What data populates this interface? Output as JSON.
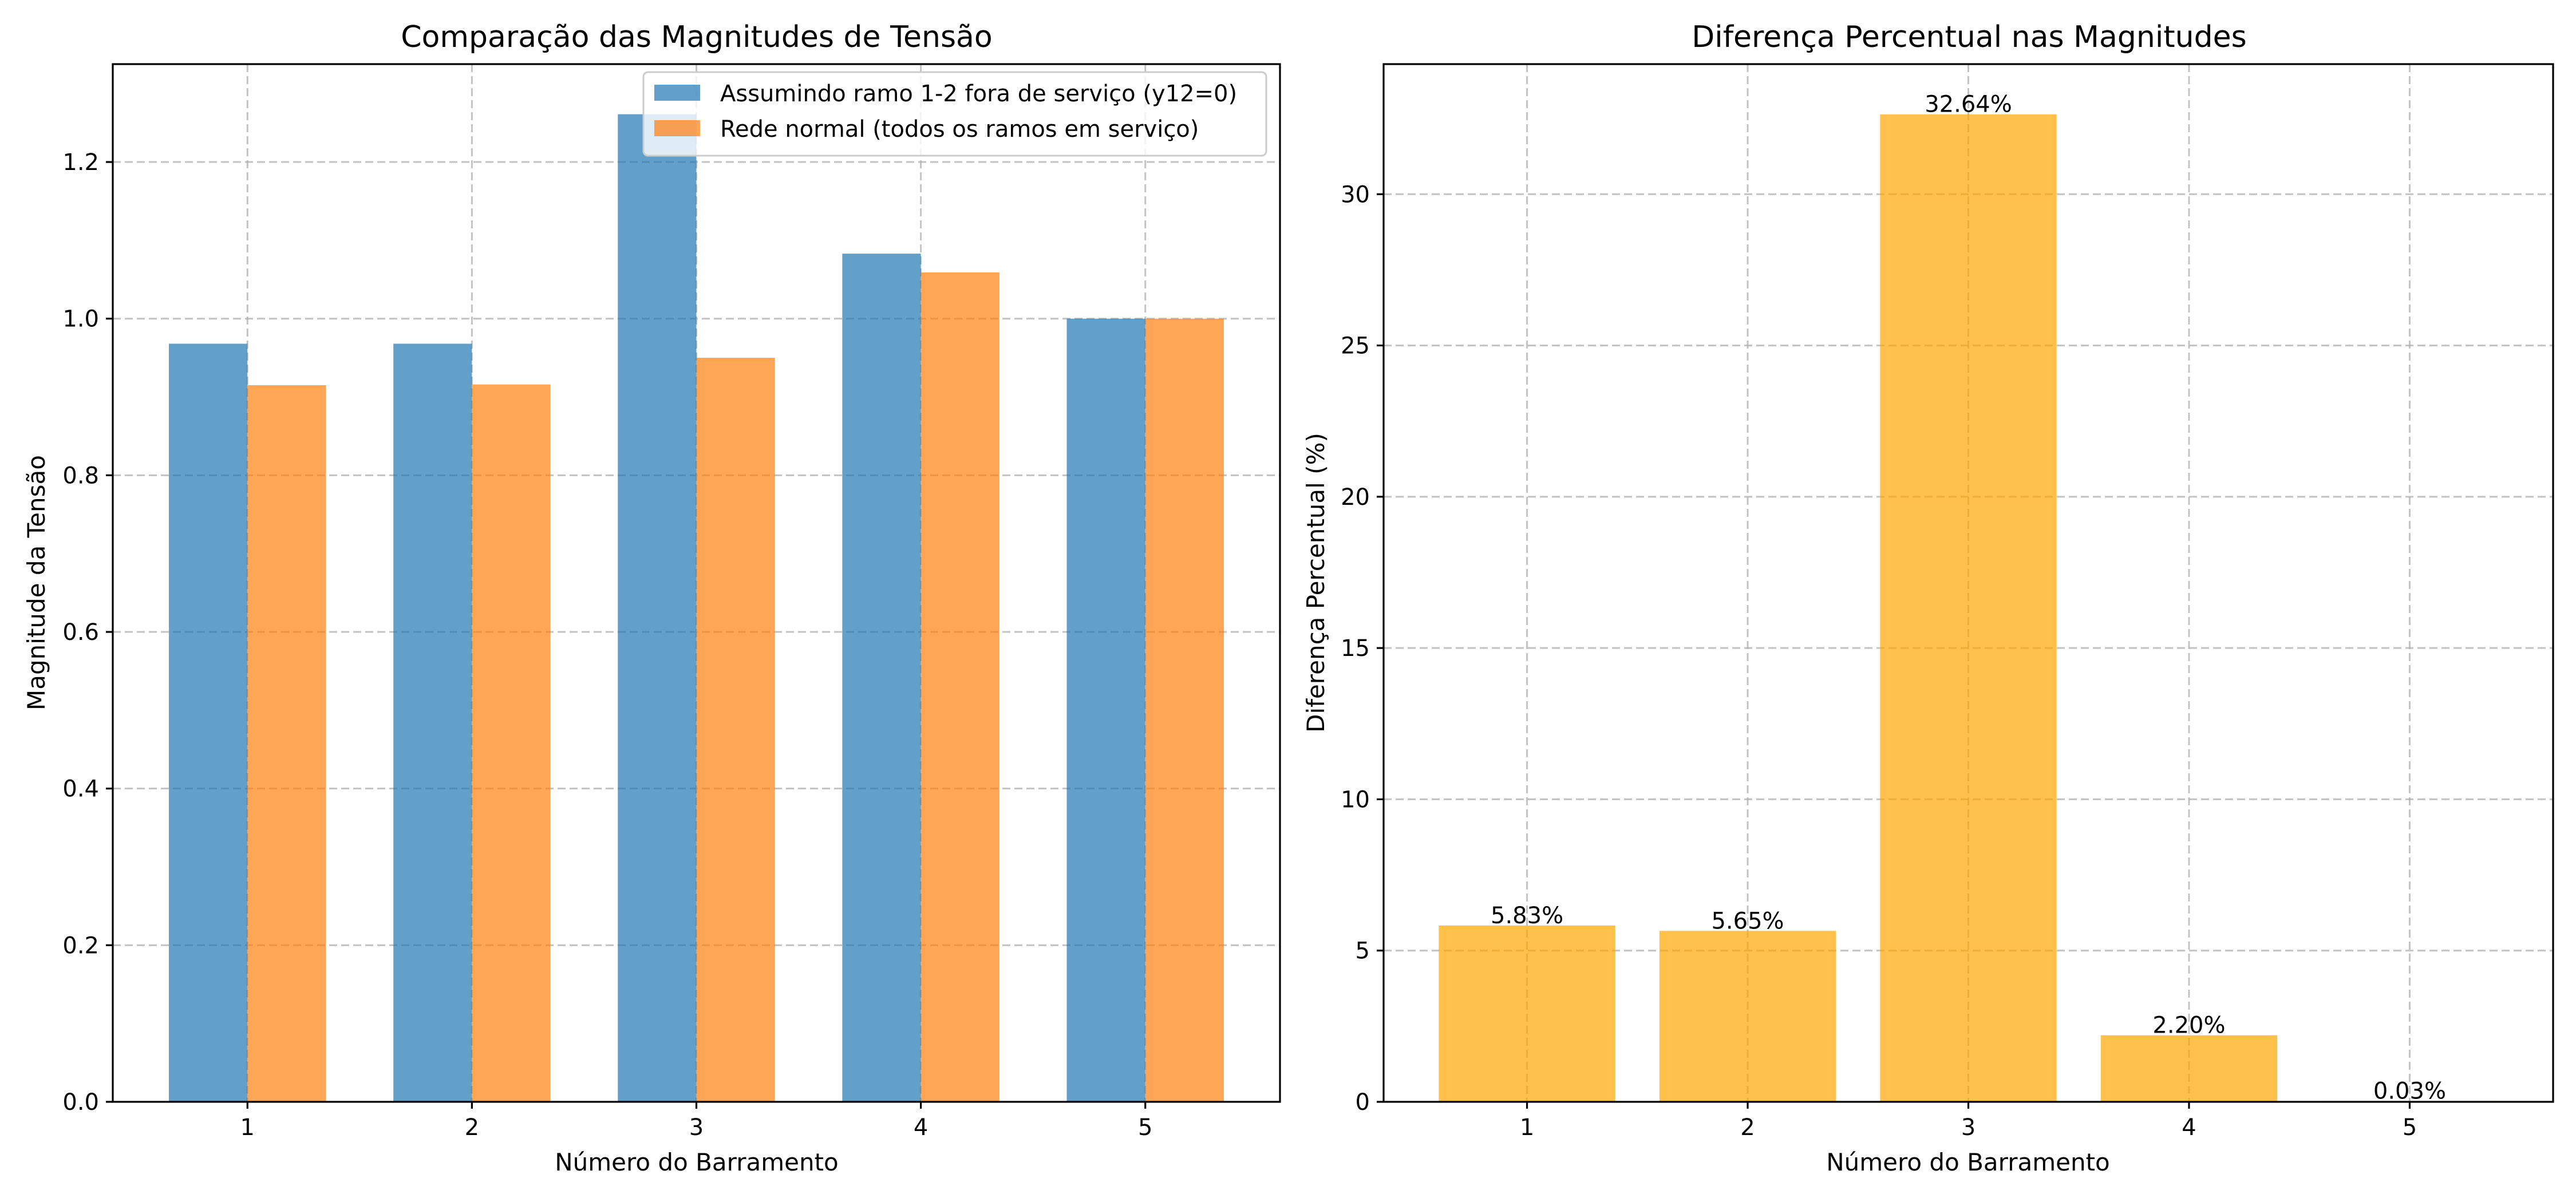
{
  "chart_data": [
    {
      "type": "bar",
      "title": "Comparação das Magnitudes de Tensão",
      "xlabel": "Número do Barramento",
      "ylabel": "Magnitude da Tensão",
      "categories": [
        "1",
        "2",
        "3",
        "4",
        "5"
      ],
      "series": [
        {
          "name": "Assumindo ramo 1-2 fora de serviço (y12=0)",
          "values": [
            0.968,
            0.968,
            1.261,
            1.083,
            1.0
          ],
          "color": "#1f77b4"
        },
        {
          "name": "Rede normal (todos os ramos em serviço)",
          "values": [
            0.915,
            0.916,
            0.95,
            1.059,
            1.0
          ],
          "color": "#ff7f0e"
        }
      ],
      "ylim": [
        0,
        1.325
      ],
      "yticks": [
        "0.0",
        "0.2",
        "0.4",
        "0.6",
        "0.8",
        "1.0",
        "1.2"
      ],
      "ytick_values": [
        0,
        0.2,
        0.4,
        0.6,
        0.8,
        1.0,
        1.2
      ],
      "bar_opacity": 0.7,
      "grid": true,
      "legend": "upper right"
    },
    {
      "type": "bar",
      "title": "Diferença Percentual nas Magnitudes",
      "xlabel": "Número do Barramento",
      "ylabel": "Diferença Percentual (%)",
      "categories": [
        "1",
        "2",
        "3",
        "4",
        "5"
      ],
      "values": [
        5.83,
        5.65,
        32.64,
        2.2,
        0.03
      ],
      "data_labels": [
        "5.83%",
        "5.65%",
        "32.64%",
        "2.20%",
        "0.03%"
      ],
      "color": "#ffa500",
      "bar_opacity": 0.7,
      "ylim": [
        0,
        34.3
      ],
      "yticks": [
        "0",
        "5",
        "10",
        "15",
        "20",
        "25",
        "30"
      ],
      "ytick_values": [
        0,
        5,
        10,
        15,
        20,
        25,
        30
      ],
      "grid": true
    }
  ]
}
